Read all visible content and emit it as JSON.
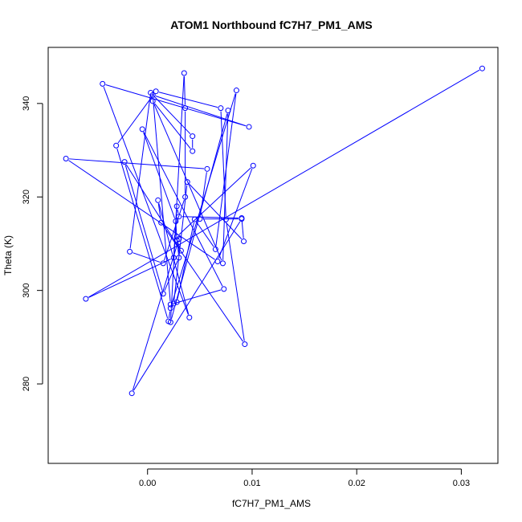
{
  "chart_data": {
    "type": "line",
    "title": "ATOM1 Northbound fC7H7_PM1_AMS",
    "xlabel": "fC7H7_PM1_AMS",
    "ylabel": "Theta (K)",
    "xlim": [
      -0.0095,
      0.0335
    ],
    "ylim": [
      263,
      352
    ],
    "x_ticks": [
      0.0,
      0.01,
      0.02,
      0.03
    ],
    "x_tick_labels": [
      "0.00",
      "0.01",
      "0.02",
      "0.03"
    ],
    "y_ticks": [
      280,
      300,
      320,
      340
    ],
    "y_tick_labels": [
      "280",
      "300",
      "320",
      "340"
    ],
    "grid": false,
    "series_color": "#0000ff",
    "marker": "open-circle",
    "points": [
      {
        "x": 0.032,
        "y": 347.5
      },
      {
        "x": -0.0059,
        "y": 298.2
      },
      {
        "x": 0.0025,
        "y": 307.0
      },
      {
        "x": 0.0035,
        "y": 346.5
      },
      {
        "x": 0.0036,
        "y": 339.0
      },
      {
        "x": 0.0036,
        "y": 320.0
      },
      {
        "x": 0.0015,
        "y": 305.8
      },
      {
        "x": -0.0017,
        "y": 308.3
      },
      {
        "x": 0.0003,
        "y": 342.3
      },
      {
        "x": 0.0043,
        "y": 333.0
      },
      {
        "x": 0.0043,
        "y": 329.8
      },
      {
        "x": 0.0005,
        "y": 340.5
      },
      {
        "x": 0.0072,
        "y": 305.8
      },
      {
        "x": 0.0077,
        "y": 338.5
      },
      {
        "x": 0.0022,
        "y": 293.2
      },
      {
        "x": 0.0028,
        "y": 318.0
      },
      {
        "x": 0.003,
        "y": 315.8
      },
      {
        "x": 0.009,
        "y": 315.5
      },
      {
        "x": 0.0092,
        "y": 310.5
      },
      {
        "x": 0.0038,
        "y": 323.2
      },
      {
        "x": 0.0025,
        "y": 297.2
      },
      {
        "x": 0.0028,
        "y": 297.5
      },
      {
        "x": 0.0045,
        "y": 315.2
      },
      {
        "x": 0.0065,
        "y": 308.8
      },
      {
        "x": 0.0085,
        "y": 342.8
      },
      {
        "x": 0.0022,
        "y": 296.2
      },
      {
        "x": 0.002,
        "y": 293.4
      },
      {
        "x": -0.003,
        "y": 331.0
      },
      {
        "x": 0.0008,
        "y": 342.6
      },
      {
        "x": 0.007,
        "y": 339.0
      },
      {
        "x": 0.0075,
        "y": 315.2
      },
      {
        "x": 0.0093,
        "y": 288.5
      },
      {
        "x": 0.0013,
        "y": 314.5
      },
      {
        "x": 0.001,
        "y": 319.3
      },
      {
        "x": 0.004,
        "y": 294.2
      },
      {
        "x": -0.0043,
        "y": 344.2
      },
      {
        "x": 0.0097,
        "y": 335.0
      },
      {
        "x": 0.0005,
        "y": 341.8
      },
      {
        "x": 0.0022,
        "y": 297.0
      },
      {
        "x": 0.0073,
        "y": 300.3
      },
      {
        "x": -0.0005,
        "y": 334.5
      },
      {
        "x": 0.0027,
        "y": 314.8
      },
      {
        "x": 0.0028,
        "y": 310.8
      },
      {
        "x": 0.0032,
        "y": 308.5
      },
      {
        "x": -0.0022,
        "y": 327.5
      },
      {
        "x": 0.0015,
        "y": 299.3
      },
      {
        "x": 0.003,
        "y": 307.0
      },
      {
        "x": 0.0028,
        "y": 311.5
      },
      {
        "x": 0.0101,
        "y": 326.7
      },
      {
        "x": 0.0067,
        "y": 306.2
      },
      {
        "x": -0.0078,
        "y": 328.2
      },
      {
        "x": 0.0057,
        "y": 326.0
      },
      {
        "x": 0.005,
        "y": 315.3
      },
      {
        "x": 0.009,
        "y": 315.3
      },
      {
        "x": -0.0015,
        "y": 278.0
      },
      {
        "x": 0.003,
        "y": 311.0
      }
    ]
  }
}
